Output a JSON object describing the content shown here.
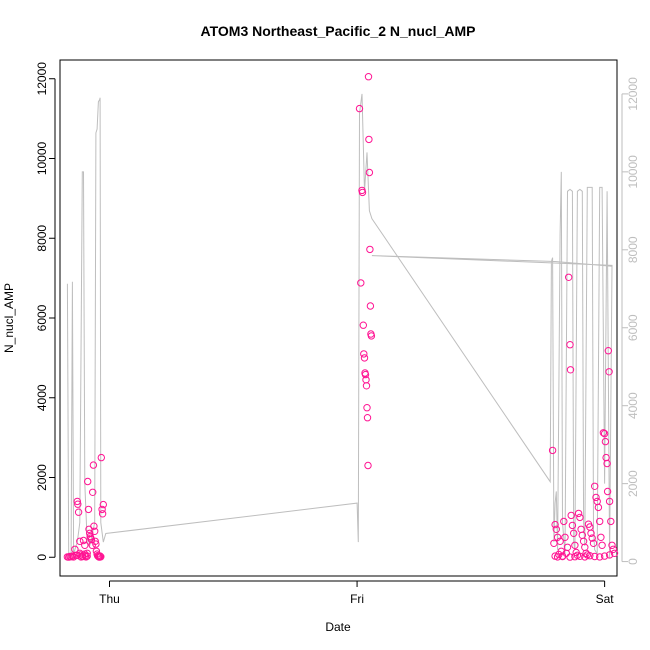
{
  "chart_data": {
    "type": "scatter",
    "title": "ATOM3 Northeast_Pacific_2 N_nucl_AMP",
    "xlabel": "Date",
    "ylabel": "N_nucl_AMP",
    "x_axis": {
      "range_days": [
        -0.2,
        2.05
      ],
      "ticks": [
        {
          "value": 0,
          "label": "Thu"
        },
        {
          "value": 1,
          "label": "Fri"
        },
        {
          "value": 2,
          "label": "Sat"
        }
      ]
    },
    "y_axis_left": {
      "range": [
        -470,
        12470
      ],
      "ticks": [
        {
          "value": 0,
          "label": "0"
        },
        {
          "value": 2000,
          "label": "2000"
        },
        {
          "value": 4000,
          "label": "4000"
        },
        {
          "value": 6000,
          "label": "6000"
        },
        {
          "value": 8000,
          "label": "8000"
        },
        {
          "value": 10000,
          "label": "10000"
        },
        {
          "value": 12000,
          "label": "12000"
        }
      ]
    },
    "y_axis_right": {
      "range": [
        -370,
        12870
      ],
      "color": "#bebebe",
      "ticks": [
        {
          "value": 0,
          "label": "0"
        },
        {
          "value": 2000,
          "label": "2000"
        },
        {
          "value": 4000,
          "label": "4000"
        },
        {
          "value": 6000,
          "label": "6000"
        },
        {
          "value": 8000,
          "label": "8000"
        },
        {
          "value": 10000,
          "label": "10000"
        },
        {
          "value": 12000,
          "label": "12000"
        }
      ]
    },
    "series": [
      {
        "name": "N_nucl_AMP",
        "kind": "points",
        "axis": "left",
        "color": "#ff1493",
        "points": [
          [
            -0.17,
            10
          ],
          [
            -0.165,
            5
          ],
          [
            -0.16,
            20
          ],
          [
            -0.155,
            15
          ],
          [
            -0.15,
            30
          ],
          [
            -0.145,
            8
          ],
          [
            -0.14,
            200
          ],
          [
            -0.135,
            50
          ],
          [
            -0.13,
            1400
          ],
          [
            -0.128,
            1330
          ],
          [
            -0.125,
            1130
          ],
          [
            -0.12,
            400
          ],
          [
            -0.118,
            60
          ],
          [
            -0.115,
            10
          ],
          [
            -0.11,
            30
          ],
          [
            -0.108,
            20
          ],
          [
            -0.105,
            420
          ],
          [
            -0.1,
            300
          ],
          [
            -0.098,
            40
          ],
          [
            -0.095,
            10
          ],
          [
            -0.09,
            100
          ],
          [
            -0.088,
            1900
          ],
          [
            -0.085,
            1200
          ],
          [
            -0.083,
            700
          ],
          [
            -0.08,
            600
          ],
          [
            -0.078,
            520
          ],
          [
            -0.075,
            480
          ],
          [
            -0.073,
            440
          ],
          [
            -0.07,
            300
          ],
          [
            -0.068,
            1630
          ],
          [
            -0.065,
            2310
          ],
          [
            -0.063,
            780
          ],
          [
            -0.06,
            650
          ],
          [
            -0.058,
            400
          ],
          [
            -0.055,
            330
          ],
          [
            -0.053,
            150
          ],
          [
            -0.05,
            80
          ],
          [
            -0.048,
            40
          ],
          [
            -0.045,
            20
          ],
          [
            -0.043,
            10
          ],
          [
            -0.04,
            5
          ],
          [
            -0.038,
            30
          ],
          [
            -0.035,
            15
          ],
          [
            -0.033,
            2500
          ],
          [
            -0.03,
            1200
          ],
          [
            -0.028,
            1090
          ],
          [
            -0.025,
            1320
          ],
          [
            -0.12,
            100
          ],
          [
            -0.1,
            80
          ],
          [
            -0.09,
            30
          ],
          [
            -0.13,
            50
          ],
          [
            1.01,
            11250
          ],
          [
            1.015,
            6880
          ],
          [
            1.02,
            9200
          ],
          [
            1.022,
            9150
          ],
          [
            1.025,
            5820
          ],
          [
            1.027,
            5100
          ],
          [
            1.03,
            5000
          ],
          [
            1.032,
            4620
          ],
          [
            1.034,
            4580
          ],
          [
            1.036,
            4450
          ],
          [
            1.038,
            4300
          ],
          [
            1.04,
            3750
          ],
          [
            1.042,
            3500
          ],
          [
            1.044,
            2300
          ],
          [
            1.046,
            12050
          ],
          [
            1.048,
            10480
          ],
          [
            1.05,
            9650
          ],
          [
            1.052,
            7720
          ],
          [
            1.054,
            6300
          ],
          [
            1.056,
            5600
          ],
          [
            1.058,
            5550
          ],
          [
            1.79,
            2680
          ],
          [
            1.795,
            350
          ],
          [
            1.8,
            820
          ],
          [
            1.805,
            700
          ],
          [
            1.81,
            500
          ],
          [
            1.815,
            70
          ],
          [
            1.82,
            400
          ],
          [
            1.825,
            150
          ],
          [
            1.83,
            30
          ],
          [
            1.835,
            900
          ],
          [
            1.84,
            500
          ],
          [
            1.845,
            100
          ],
          [
            1.85,
            250
          ],
          [
            1.855,
            7020
          ],
          [
            1.86,
            5330
          ],
          [
            1.862,
            4700
          ],
          [
            1.865,
            1050
          ],
          [
            1.87,
            800
          ],
          [
            1.875,
            600
          ],
          [
            1.88,
            300
          ],
          [
            1.885,
            120
          ],
          [
            1.89,
            50
          ],
          [
            1.895,
            1100
          ],
          [
            1.9,
            1000
          ],
          [
            1.905,
            700
          ],
          [
            1.91,
            550
          ],
          [
            1.915,
            400
          ],
          [
            1.92,
            250
          ],
          [
            1.925,
            100
          ],
          [
            1.93,
            60
          ],
          [
            1.935,
            830
          ],
          [
            1.94,
            760
          ],
          [
            1.945,
            600
          ],
          [
            1.95,
            480
          ],
          [
            1.955,
            350
          ],
          [
            1.96,
            1780
          ],
          [
            1.965,
            1500
          ],
          [
            1.97,
            1400
          ],
          [
            1.975,
            1250
          ],
          [
            1.98,
            900
          ],
          [
            1.985,
            500
          ],
          [
            1.99,
            300
          ],
          [
            1.995,
            3120
          ],
          [
            2.0,
            3100
          ],
          [
            2.003,
            2900
          ],
          [
            2.006,
            2500
          ],
          [
            2.01,
            2350
          ],
          [
            2.012,
            1650
          ],
          [
            2.015,
            5180
          ],
          [
            2.018,
            4650
          ],
          [
            2.02,
            1400
          ],
          [
            2.025,
            900
          ],
          [
            2.03,
            300
          ],
          [
            2.035,
            200
          ],
          [
            2.04,
            100
          ],
          [
            1.8,
            30
          ],
          [
            1.81,
            10
          ],
          [
            1.83,
            20
          ],
          [
            1.86,
            5
          ],
          [
            1.88,
            15
          ],
          [
            1.9,
            25
          ],
          [
            1.92,
            10
          ],
          [
            1.94,
            40
          ],
          [
            1.96,
            20
          ],
          [
            1.98,
            10
          ],
          [
            2.0,
            30
          ],
          [
            2.02,
            60
          ]
        ]
      },
      {
        "name": "reference-line",
        "kind": "line",
        "axis": "right",
        "color": "#bebebe",
        "points": [
          [
            -0.17,
            7130
          ],
          [
            -0.165,
            100
          ],
          [
            -0.155,
            200
          ],
          [
            -0.15,
            7180
          ],
          [
            -0.145,
            200
          ],
          [
            -0.13,
            500
          ],
          [
            -0.12,
            1000
          ],
          [
            -0.11,
            10000
          ],
          [
            -0.105,
            10000
          ],
          [
            -0.1,
            2000
          ],
          [
            -0.09,
            500
          ],
          [
            -0.08,
            400
          ],
          [
            -0.06,
            1000
          ],
          [
            -0.055,
            11000
          ],
          [
            -0.05,
            11100
          ],
          [
            -0.045,
            11800
          ],
          [
            -0.04,
            11850
          ],
          [
            -0.038,
            11900
          ],
          [
            -0.035,
            1000
          ],
          [
            -0.025,
            500
          ],
          [
            -0.015,
            720
          ],
          [
            1.0,
            1500
          ],
          [
            1.005,
            500
          ],
          [
            1.01,
            11500
          ],
          [
            1.02,
            12000
          ],
          [
            1.03,
            9500
          ],
          [
            1.04,
            10500
          ],
          [
            1.05,
            9000
          ],
          [
            1.06,
            8800
          ],
          [
            1.78,
            2050
          ],
          [
            1.785,
            7700
          ],
          [
            1.79,
            7800
          ],
          [
            1.795,
            500
          ],
          [
            1.8,
            1500
          ],
          [
            1.805,
            1800
          ],
          [
            1.81,
            300
          ],
          [
            1.82,
            8400
          ],
          [
            1.825,
            10000
          ],
          [
            1.83,
            1000
          ],
          [
            1.84,
            200
          ],
          [
            1.85,
            9500
          ],
          [
            1.86,
            9550
          ],
          [
            1.87,
            9500
          ],
          [
            1.875,
            500
          ],
          [
            1.88,
            300
          ],
          [
            1.89,
            9500
          ],
          [
            1.9,
            9550
          ],
          [
            1.91,
            9500
          ],
          [
            1.915,
            1000
          ],
          [
            1.92,
            400
          ],
          [
            1.93,
            9600
          ],
          [
            1.94,
            9600
          ],
          [
            1.95,
            9600
          ],
          [
            1.955,
            800
          ],
          [
            1.96,
            300
          ],
          [
            1.97,
            200
          ],
          [
            1.98,
            9600
          ],
          [
            1.99,
            9600
          ],
          [
            2.0,
            2000
          ],
          [
            2.01,
            9500
          ],
          [
            2.02,
            100
          ],
          [
            2.03,
            7600
          ],
          [
            1.06,
            7850
          ],
          [
            1.8,
            7700
          ],
          [
            2.03,
            7580
          ]
        ]
      }
    ]
  }
}
